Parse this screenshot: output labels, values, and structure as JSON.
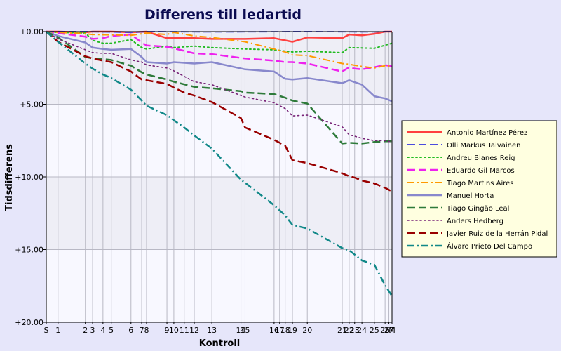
{
  "chart_data": {
    "type": "line",
    "title": "Differens till ledartid",
    "xlabel": "Kontroll",
    "ylabel": "Tidsdifferens",
    "ylim": [
      0,
      20
    ],
    "y_inverted": true,
    "y_ticks": [
      0,
      5,
      10,
      15,
      20
    ],
    "y_tick_labels": [
      "+0.00",
      "+5.00",
      "+10.00",
      "+15.00",
      "+20.00"
    ],
    "y_band_between_gridlines": true,
    "grid": true,
    "legend": "right",
    "x_axis": {
      "min": 0,
      "max": 100,
      "controls": [
        {
          "label": "S",
          "pos": 0.0
        },
        {
          "label": "1",
          "pos": 3.4
        },
        {
          "label": "2",
          "pos": 11.3
        },
        {
          "label": "3",
          "pos": 13.4
        },
        {
          "label": "4",
          "pos": 16.4
        },
        {
          "label": "5",
          "pos": 18.8
        },
        {
          "label": "6",
          "pos": 24.5
        },
        {
          "label": "7",
          "pos": 27.6
        },
        {
          "label": "8",
          "pos": 29.0
        },
        {
          "label": "9",
          "pos": 34.9
        },
        {
          "label": "10",
          "pos": 36.9
        },
        {
          "label": "11",
          "pos": 39.9
        },
        {
          "label": "12",
          "pos": 42.8
        },
        {
          "label": "13",
          "pos": 47.9
        },
        {
          "label": "14",
          "pos": 56.3
        },
        {
          "label": "15",
          "pos": 57.5
        },
        {
          "label": "16",
          "pos": 65.9
        },
        {
          "label": "17",
          "pos": 67.5
        },
        {
          "label": "18",
          "pos": 69.1
        },
        {
          "label": "19",
          "pos": 71.2
        },
        {
          "label": "20",
          "pos": 75.5
        },
        {
          "label": "21",
          "pos": 85.6
        },
        {
          "label": "22",
          "pos": 87.6
        },
        {
          "label": "23",
          "pos": 89.2
        },
        {
          "label": "24",
          "pos": 91.3
        },
        {
          "label": "25",
          "pos": 94.9
        },
        {
          "label": "26",
          "pos": 98.0
        },
        {
          "label": "27",
          "pos": 99.1
        },
        {
          "label": "M",
          "pos": 100.0
        }
      ]
    },
    "series": [
      {
        "name": "Antonio Martínez Pérez",
        "color": "#ff4040",
        "dash": "solid",
        "width": 2.5,
        "x": [
          0,
          3.4,
          11.3,
          13.4,
          18.8,
          24.5,
          29.0,
          34.9,
          42.8,
          47.9,
          57.5,
          65.9,
          71.2,
          75.5,
          85.6,
          87.6,
          91.3,
          94.9,
          98.0,
          100
        ],
        "y": [
          0,
          0,
          0.05,
          0,
          0,
          0.05,
          0,
          0.45,
          0.45,
          0.5,
          0.5,
          0.45,
          0.7,
          0.4,
          0.45,
          0.2,
          0.25,
          0.15,
          0,
          0
        ]
      },
      {
        "name": "Olli Markus Taivainen",
        "color": "#3333dd",
        "dash": "dashed",
        "width": 1.8,
        "x": [
          0,
          11.3,
          24.5,
          29.0,
          47.9,
          75.5,
          94.9,
          100
        ],
        "y": [
          0,
          0,
          0.05,
          0,
          0.02,
          0.0,
          0.02,
          0.0
        ]
      },
      {
        "name": "Andreu Blanes Reig",
        "color": "#22bb22",
        "dash": "dotted",
        "width": 2,
        "x": [
          0,
          3.4,
          11.3,
          13.4,
          16.4,
          18.8,
          24.5,
          27.6,
          29.0,
          34.9,
          36.9,
          42.8,
          47.9,
          57.5,
          65.9,
          69.1,
          71.2,
          75.5,
          85.6,
          87.6,
          94.9,
          100
        ],
        "y": [
          0,
          0.05,
          0.1,
          0.6,
          0.8,
          0.8,
          0.55,
          1.1,
          1.2,
          1.0,
          1.1,
          1.0,
          1.1,
          1.2,
          1.25,
          1.35,
          1.4,
          1.35,
          1.45,
          1.1,
          1.15,
          0.8
        ]
      },
      {
        "name": "Eduardo Gil Marcos",
        "color": "#ee22ee",
        "dash": "dashed",
        "width": 2.5,
        "x": [
          0,
          3.4,
          11.3,
          13.4,
          16.4,
          18.8,
          24.5,
          27.6,
          29.0,
          34.9,
          36.9,
          42.8,
          47.9,
          57.5,
          65.9,
          69.1,
          71.2,
          75.5,
          85.6,
          87.6,
          89.2,
          91.3,
          94.9,
          98.0,
          100
        ],
        "y": [
          0,
          0.1,
          0.35,
          0.5,
          0.45,
          0.3,
          0.2,
          0.75,
          0.95,
          1.05,
          1.15,
          1.5,
          1.55,
          1.85,
          2.0,
          2.1,
          2.1,
          2.2,
          2.75,
          2.45,
          2.55,
          2.6,
          2.45,
          2.3,
          2.4
        ]
      },
      {
        "name": "Tiago Martins Aires",
        "color": "#ff9900",
        "dash": "dashdot",
        "width": 2,
        "x": [
          0,
          3.4,
          11.3,
          13.4,
          24.5,
          29.0,
          34.9,
          36.9,
          42.8,
          47.9,
          57.5,
          65.9,
          69.1,
          71.2,
          75.5,
          85.6,
          87.6,
          91.3,
          94.9,
          98.0,
          100
        ],
        "y": [
          0,
          0.05,
          0.15,
          0.2,
          0.25,
          0.1,
          0.2,
          0.05,
          0.3,
          0.4,
          0.7,
          1.2,
          1.4,
          1.6,
          1.65,
          2.2,
          2.25,
          2.4,
          2.5,
          2.35,
          2.4
        ]
      },
      {
        "name": "Manuel Horta",
        "color": "#8888cc",
        "dash": "solid",
        "width": 2.5,
        "x": [
          0,
          3.4,
          11.3,
          13.4,
          16.4,
          18.8,
          24.5,
          27.6,
          29.0,
          34.9,
          36.9,
          42.8,
          47.9,
          57.5,
          65.9,
          69.1,
          71.2,
          75.5,
          85.6,
          87.6,
          91.3,
          94.9,
          98.0,
          100
        ],
        "y": [
          0,
          0.3,
          0.75,
          1.1,
          1.2,
          1.25,
          1.2,
          1.75,
          2.1,
          2.2,
          2.1,
          2.2,
          2.1,
          2.6,
          2.75,
          3.25,
          3.3,
          3.2,
          3.55,
          3.35,
          3.65,
          4.45,
          4.6,
          4.8
        ]
      },
      {
        "name": "Tiago Gingão Leal",
        "color": "#2e7a3a",
        "dash": "dashed",
        "width": 2.5,
        "x": [
          0,
          3.4,
          11.3,
          13.4,
          16.4,
          18.8,
          24.5,
          27.6,
          29.0,
          34.9,
          36.9,
          42.8,
          47.9,
          56.3,
          57.5,
          65.9,
          69.1,
          71.2,
          75.5,
          85.6,
          87.6,
          91.3,
          94.9,
          98.0,
          100
        ],
        "y": [
          0,
          0.4,
          1.75,
          1.85,
          1.9,
          1.95,
          2.35,
          2.8,
          2.95,
          3.3,
          3.45,
          3.8,
          3.9,
          4.1,
          4.2,
          4.3,
          4.55,
          4.75,
          4.95,
          7.7,
          7.65,
          7.7,
          7.6,
          7.55,
          7.55
        ]
      },
      {
        "name": "Anders Hedberg",
        "color": "#772277",
        "dash": "dotted",
        "width": 1.6,
        "x": [
          0,
          3.4,
          11.3,
          13.4,
          16.4,
          18.8,
          24.5,
          27.6,
          29.0,
          34.9,
          36.9,
          42.8,
          47.9,
          57.5,
          65.9,
          69.1,
          71.2,
          75.5,
          85.6,
          87.6,
          89.2,
          91.3,
          94.9,
          98.0,
          100
        ],
        "y": [
          0,
          0.5,
          1.25,
          1.45,
          1.5,
          1.5,
          1.95,
          2.1,
          2.3,
          2.5,
          2.7,
          3.45,
          3.65,
          4.5,
          4.9,
          5.3,
          5.8,
          5.75,
          6.55,
          7.1,
          7.2,
          7.35,
          7.5,
          7.5,
          7.6
        ]
      },
      {
        "name": "Javier Ruiz de la Herrán Pidal",
        "color": "#990000",
        "dash": "dashed",
        "width": 2.5,
        "x": [
          0,
          3.4,
          11.3,
          13.4,
          16.4,
          18.8,
          24.5,
          27.6,
          29.0,
          34.9,
          36.9,
          39.9,
          42.8,
          47.9,
          56.3,
          57.5,
          65.9,
          69.1,
          71.2,
          75.5,
          85.6,
          87.6,
          89.2,
          91.3,
          94.9,
          98.0,
          100
        ],
        "y": [
          0,
          0.7,
          1.7,
          1.85,
          2.0,
          2.1,
          2.75,
          3.3,
          3.35,
          3.6,
          3.85,
          4.2,
          4.4,
          4.85,
          5.95,
          6.6,
          7.45,
          7.85,
          8.85,
          9.05,
          9.75,
          9.95,
          10.05,
          10.25,
          10.45,
          10.75,
          11.0
        ]
      },
      {
        "name": "Álvaro Prieto Del Campo",
        "color": "#118888",
        "dash": "dashdot",
        "width": 2.5,
        "x": [
          0,
          3.4,
          11.3,
          13.4,
          16.4,
          18.8,
          24.5,
          27.6,
          29.0,
          34.9,
          36.9,
          39.9,
          42.8,
          47.9,
          56.3,
          57.5,
          65.9,
          69.1,
          71.2,
          75.5,
          85.6,
          87.6,
          89.2,
          91.3,
          94.9,
          98.0,
          100
        ],
        "y": [
          0,
          0.7,
          2.2,
          2.55,
          2.95,
          3.2,
          4.0,
          4.75,
          5.1,
          5.75,
          6.1,
          6.6,
          7.15,
          8.05,
          10.2,
          10.4,
          11.95,
          12.65,
          13.3,
          13.55,
          14.9,
          15.05,
          15.35,
          15.75,
          16.05,
          17.45,
          18.2
        ]
      }
    ]
  }
}
